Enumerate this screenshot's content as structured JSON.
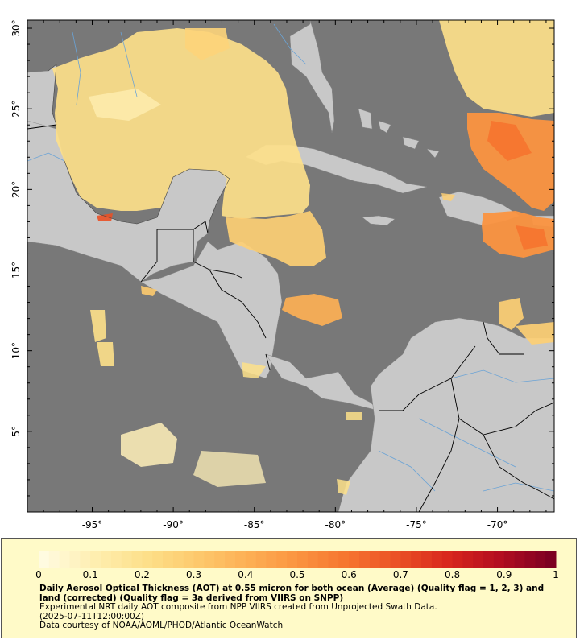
{
  "map": {
    "ocean_color": "#787878",
    "land_color": "#c8c8c8",
    "border_color": "#000000",
    "river_color": "#6aa3d6",
    "lon_ticks": [
      {
        "value": -95,
        "label": "-95°"
      },
      {
        "value": -90,
        "label": "-90°"
      },
      {
        "value": -85,
        "label": "-85°"
      },
      {
        "value": -80,
        "label": "-80°"
      },
      {
        "value": -75,
        "label": "-75°"
      },
      {
        "value": -70,
        "label": "-70°"
      }
    ],
    "lat_ticks": [
      {
        "value": 30,
        "label": "30°"
      },
      {
        "value": 25,
        "label": "25°"
      },
      {
        "value": 20,
        "label": "20°"
      },
      {
        "value": 15,
        "label": "15°"
      },
      {
        "value": 10,
        "label": "10°"
      },
      {
        "value": 5,
        "label": "5°"
      }
    ],
    "lon_range": [
      -99,
      -66.5
    ],
    "lat_range": [
      0,
      30.5
    ]
  },
  "colorbar": {
    "tick_labels": [
      "0",
      "0.1",
      "0.2",
      "0.3",
      "0.4",
      "0.5",
      "0.6",
      "0.7",
      "0.8",
      "0.9",
      "1"
    ],
    "stops": [
      "#fffbe0",
      "#feeeb0",
      "#fde08a",
      "#fdca6e",
      "#fdb055",
      "#fb9440",
      "#f6742f",
      "#ea5025",
      "#d8261d",
      "#b30d20",
      "#7d0022"
    ]
  },
  "legend": {
    "title": "Daily Aerosol Optical Thickness (AOT) at 0.55 micron for both ocean (Average) (Quality flag = 1, 2, 3) and land (corrected) (Quality flag = 3a derived from VIIRS on SNPP)",
    "line2": "Experimental NRT daily AOT composite from NPP VIIRS created from Unprojected Swath Data.",
    "line3": "(2025-07-11T12:00:00Z)",
    "line4": "Data courtesy of NOAA/AOML/PHOD/Atlantic OceanWatch"
  }
}
